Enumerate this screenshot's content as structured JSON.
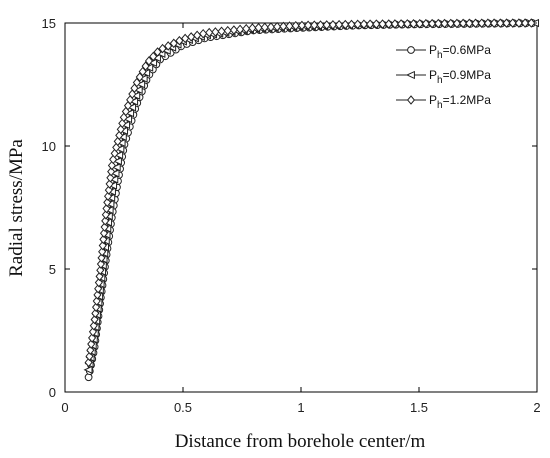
{
  "chart_data": {
    "type": "line",
    "title": "",
    "xlabel": "Distance from borehole center/m",
    "ylabel": "Radial stress/MPa",
    "xlim": [
      0,
      2
    ],
    "ylim": [
      0,
      15
    ],
    "xticks": [
      "0",
      "0.5",
      "1",
      "1.5",
      "2"
    ],
    "yticks": [
      "0",
      "5",
      "10",
      "15"
    ],
    "grid": false,
    "legend_position": "top-right",
    "series": [
      {
        "name": "Ph=0.6MPa",
        "legend_base": "P",
        "legend_sub": "h",
        "legend_rest": "=0.6MPa",
        "marker": "circle",
        "x": [
          0.1,
          0.125,
          0.15,
          0.175,
          0.2,
          0.25,
          0.3,
          0.35,
          0.4,
          0.5,
          0.6,
          0.8,
          1.0,
          1.25,
          1.5,
          1.75,
          2.0
        ],
        "y": [
          0.6,
          1.8,
          3.7,
          5.5,
          7.2,
          10.0,
          11.6,
          12.8,
          13.5,
          14.1,
          14.4,
          14.7,
          14.8,
          14.9,
          14.95,
          14.97,
          15.0
        ]
      },
      {
        "name": "Ph=0.9MPa",
        "legend_base": "P",
        "legend_sub": "h",
        "legend_rest": "=0.9MPa",
        "marker": "triangle-left",
        "x": [
          0.1,
          0.125,
          0.15,
          0.175,
          0.2,
          0.25,
          0.3,
          0.35,
          0.4,
          0.5,
          0.6,
          0.8,
          1.0,
          1.25,
          1.5,
          1.75,
          2.0
        ],
        "y": [
          0.9,
          2.3,
          4.3,
          6.3,
          8.2,
          10.6,
          12.0,
          13.1,
          13.7,
          14.25,
          14.5,
          14.75,
          14.85,
          14.92,
          14.96,
          14.98,
          15.0
        ]
      },
      {
        "name": "Ph=1.2MPa",
        "legend_base": "P",
        "legend_sub": "h",
        "legend_rest": "=1.2MPa",
        "marker": "diamond",
        "x": [
          0.1,
          0.125,
          0.15,
          0.175,
          0.2,
          0.25,
          0.3,
          0.35,
          0.4,
          0.5,
          0.6,
          0.8,
          1.0,
          1.25,
          1.5,
          1.75,
          2.0
        ],
        "y": [
          1.2,
          2.9,
          5.0,
          7.4,
          9.3,
          11.2,
          12.5,
          13.4,
          13.9,
          14.35,
          14.6,
          14.8,
          14.9,
          14.95,
          14.97,
          14.99,
          15.0
        ]
      }
    ]
  }
}
